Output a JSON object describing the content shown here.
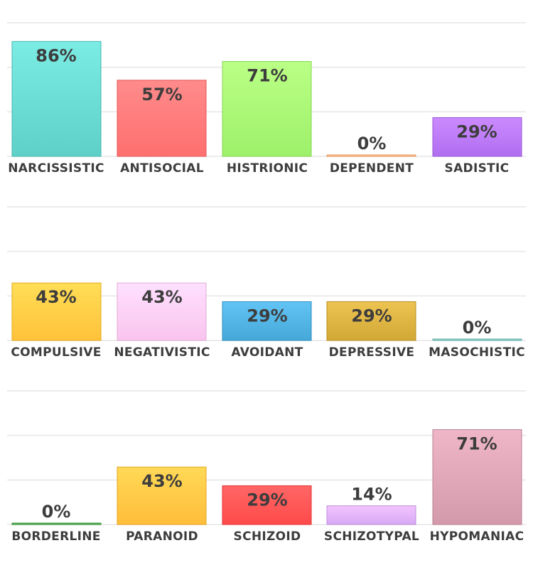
{
  "chart_data": [
    {
      "type": "bar",
      "title": "",
      "xlabel": "",
      "ylabel": "",
      "ylim": [
        0,
        100
      ],
      "grid": true,
      "categories": [
        "NARCISSISTIC",
        "ANTISOCIAL",
        "HISTRIONIC",
        "DEPENDENT",
        "SADISTIC"
      ],
      "values": [
        86,
        57,
        71,
        0,
        29
      ],
      "value_labels": [
        "86%",
        "57%",
        "71%",
        "0%",
        "29%"
      ],
      "colors": [
        "#5fd0c8",
        "#ff6f6f",
        "#9ef06a",
        "#ffb07a",
        "#b06ef0"
      ]
    },
    {
      "type": "bar",
      "title": "",
      "xlabel": "",
      "ylabel": "",
      "ylim": [
        0,
        100
      ],
      "grid": true,
      "categories": [
        "COMPULSIVE",
        "NEGATIVISTIC",
        "AVOIDANT",
        "DEPRESSIVE",
        "MASOCHISTIC"
      ],
      "values": [
        43,
        43,
        29,
        29,
        0
      ],
      "value_labels": [
        "43%",
        "43%",
        "29%",
        "29%",
        "0%"
      ],
      "colors": [
        "#ffc23a",
        "#f9c4ee",
        "#45a8d8",
        "#d1a735",
        "#7fc8c0"
      ]
    },
    {
      "type": "bar",
      "title": "",
      "xlabel": "",
      "ylabel": "",
      "ylim": [
        0,
        100
      ],
      "grid": true,
      "categories": [
        "BORDERLINE",
        "PARANOID",
        "SCHIZOID",
        "SCHIZOTYPAL",
        "HYPOMANIAC"
      ],
      "values": [
        0,
        43,
        29,
        14,
        71
      ],
      "value_labels": [
        "0%",
        "43%",
        "29%",
        "14%",
        "71%"
      ],
      "colors": [
        "#4ca84c",
        "#ffbd3a",
        "#ff4a4a",
        "#d7a8f4",
        "#d39aab"
      ]
    }
  ]
}
